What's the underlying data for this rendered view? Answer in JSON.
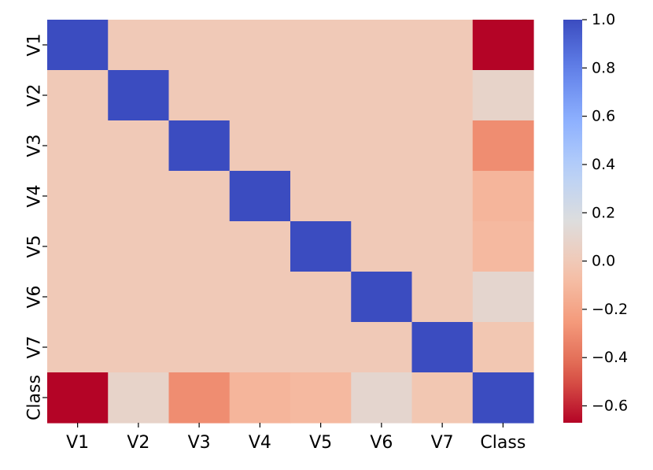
{
  "chart_data": {
    "type": "heatmap",
    "title": "",
    "xlabel": "",
    "ylabel": "",
    "x_categories": [
      "V1",
      "V2",
      "V3",
      "V4",
      "V5",
      "V6",
      "V7",
      "Class"
    ],
    "y_categories": [
      "V1",
      "V2",
      "V3",
      "V4",
      "V5",
      "V6",
      "V7",
      "Class"
    ],
    "values": [
      [
        1.0,
        0.0,
        0.0,
        0.0,
        0.0,
        0.0,
        0.0,
        -0.67
      ],
      [
        0.0,
        1.0,
        0.0,
        0.0,
        0.0,
        0.0,
        0.0,
        0.08
      ],
      [
        0.0,
        0.0,
        1.0,
        0.0,
        0.0,
        0.0,
        0.0,
        -0.3
      ],
      [
        0.0,
        0.0,
        0.0,
        1.0,
        0.0,
        0.0,
        0.0,
        -0.12
      ],
      [
        0.0,
        0.0,
        0.0,
        0.0,
        1.0,
        0.0,
        0.0,
        -0.1
      ],
      [
        0.0,
        0.0,
        0.0,
        0.0,
        0.0,
        1.0,
        0.0,
        0.1
      ],
      [
        0.0,
        0.0,
        0.0,
        0.0,
        0.0,
        0.0,
        1.0,
        -0.02
      ],
      [
        -0.67,
        0.08,
        -0.3,
        -0.12,
        -0.1,
        0.1,
        -0.02,
        1.0
      ]
    ],
    "colormap": "coolwarm_r",
    "colorbar": {
      "min": -0.67,
      "max": 1.0,
      "ticks": [
        1.0,
        0.8,
        0.6,
        0.4,
        0.2,
        0.0,
        -0.2,
        -0.4,
        -0.6
      ],
      "tick_labels": [
        "1.0",
        "0.8",
        "0.6",
        "0.4",
        "0.2",
        "0.0",
        "−0.2",
        "−0.4",
        "−0.6"
      ]
    },
    "grid": false,
    "legend": "colorbar-right"
  }
}
